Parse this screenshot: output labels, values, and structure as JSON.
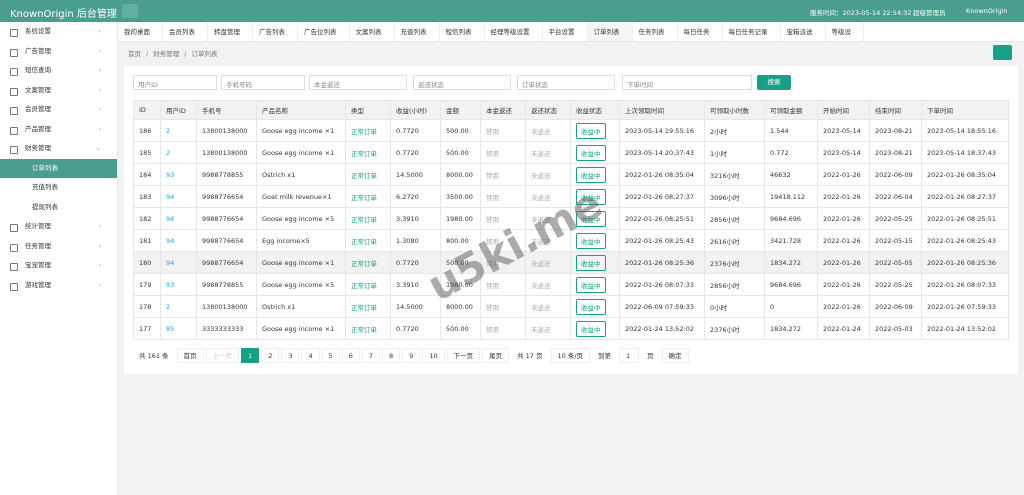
{
  "header": {
    "title": "KnownOrigin 后台管理",
    "time": "服务时间：2023-05-14 22:54:32",
    "role": "超级管理员",
    "user": "KnownOrigin"
  },
  "sidebar": {
    "items": [
      {
        "label": "系统设置"
      },
      {
        "label": "广告管理"
      },
      {
        "label": "短信查询"
      },
      {
        "label": "文案管理"
      },
      {
        "label": "会员管理"
      },
      {
        "label": "产品管理"
      },
      {
        "label": "财务管理",
        "children": [
          "订单列表",
          "充值列表",
          "提现列表"
        ]
      },
      {
        "label": "统计管理"
      },
      {
        "label": "任务管理"
      },
      {
        "label": "宝宠管理"
      },
      {
        "label": "游戏管理"
      }
    ]
  },
  "tabs": [
    "我的桌面",
    "会员列表",
    "转盘管理",
    "广告列表",
    "广告位列表",
    "文案列表",
    "充值列表",
    "短信列表",
    "经理等级设置",
    "平台设置",
    "订单列表",
    "任务列表",
    "每日任务",
    "每日任务记录",
    "宝箱派送",
    "等级设"
  ],
  "breadcrumb": [
    "首页",
    "财务管理",
    "订单列表"
  ],
  "filters": {
    "inputs": [
      "用户ID",
      "手机号码"
    ],
    "selects": [
      "本金返还",
      "返还状态",
      "订单状态"
    ],
    "date": "下单时间",
    "search": "搜索"
  },
  "table": {
    "headers": [
      "ID",
      "用户ID",
      "手机号",
      "产品名称",
      "类型",
      "收益(小时)",
      "金额",
      "本金返还",
      "返还状态",
      "收益状态",
      "上次领取时间",
      "可领取小时数",
      "可领取金额",
      "开始时间",
      "结束时间",
      "下单时间"
    ],
    "rows": [
      [
        "186",
        "2",
        "13800138000",
        "Goose egg income ×1",
        "正常订单",
        "0.7720",
        "500.00",
        "禁用",
        "未返还",
        "收益中",
        "2023-05-14 19:55:16",
        "2小时",
        "1.544",
        "2023-05-14",
        "2023-08-21",
        "2023-05-14 18:55:16"
      ],
      [
        "185",
        "2",
        "13800138000",
        "Goose egg income ×1",
        "正常订单",
        "0.7720",
        "500.00",
        "禁用",
        "未返还",
        "收益中",
        "2023-05-14 20:37:43",
        "1小时",
        "0.772",
        "2023-05-14",
        "2023-08-21",
        "2023-05-14 18:37:43"
      ],
      [
        "184",
        "93",
        "9988778855",
        "Ostrich x1",
        "正常订单",
        "14.5000",
        "8000.00",
        "禁用",
        "未返还",
        "收益中",
        "2022-01-26 08:35:04",
        "3216小时",
        "46632",
        "2022-01-26",
        "2022-06-09",
        "2022-01-26 08:35:04"
      ],
      [
        "183",
        "94",
        "9988776654",
        "Goat milk revenue×1",
        "正常订单",
        "6.2720",
        "3500.00",
        "禁用",
        "未返还",
        "收益中",
        "2022-01-26 08:27:37",
        "3096小时",
        "19418.112",
        "2022-01-26",
        "2022-06-04",
        "2022-01-26 08:27:37"
      ],
      [
        "182",
        "94",
        "9988776654",
        "Goose egg income ×5",
        "正常订单",
        "3.3910",
        "1980.00",
        "禁用",
        "未返还",
        "收益中",
        "2022-01-26 08:25:51",
        "2856小时",
        "9684.696",
        "2022-01-26",
        "2022-05-25",
        "2022-01-26 08:25:51"
      ],
      [
        "181",
        "94",
        "9988776654",
        "Egg income×5",
        "正常订单",
        "1.3080",
        "800.00",
        "禁用",
        "未返还",
        "收益中",
        "2022-01-26 08:25:43",
        "2616小时",
        "3421.728",
        "2022-01-26",
        "2022-05-15",
        "2022-01-26 08:25:43"
      ],
      [
        "180",
        "94",
        "9988776654",
        "Goose egg income ×1",
        "正常订单",
        "0.7720",
        "500.00",
        "禁用",
        "未返还",
        "收益中",
        "2022-01-26 08:25:36",
        "2376小时",
        "1834.272",
        "2022-01-26",
        "2022-05-05",
        "2022-01-26 08:25:36"
      ],
      [
        "179",
        "93",
        "9988778855",
        "Goose egg income ×5",
        "正常订单",
        "3.3910",
        "1980.00",
        "禁用",
        "未返还",
        "收益中",
        "2022-01-26 08:07:33",
        "2856小时",
        "9684.696",
        "2022-01-26",
        "2022-05-25",
        "2022-01-26 08:07:33"
      ],
      [
        "178",
        "2",
        "13800138000",
        "Ostrich x1",
        "正常订单",
        "14.5000",
        "8000.00",
        "禁用",
        "未返还",
        "收益中",
        "2022-06-09 07:59:33",
        "0小时",
        "0",
        "2022-01-26",
        "2022-06-09",
        "2022-01-26 07:59:33"
      ],
      [
        "177",
        "85",
        "3333333333",
        "Goose egg income ×1",
        "正常订单",
        "0.7720",
        "500.00",
        "禁用",
        "未返还",
        "收益中",
        "2022-01-24 13:52:02",
        "2376小时",
        "1834.272",
        "2022-01-24",
        "2022-05-03",
        "2022-01-24 13:52:02"
      ]
    ]
  },
  "pagination": {
    "total": "共 161 条",
    "first": "首页",
    "prev": "上一页",
    "pages": [
      "1",
      "2",
      "3",
      "4",
      "5",
      "6",
      "7",
      "8",
      "9",
      "10"
    ],
    "next": "下一页",
    "last": "尾页",
    "page_count": "共 17 页",
    "size": "10 条/页",
    "goto": "到第",
    "goto_value": "1",
    "goto_unit": "页",
    "confirm": "确定"
  },
  "watermark": "u5ki.me"
}
